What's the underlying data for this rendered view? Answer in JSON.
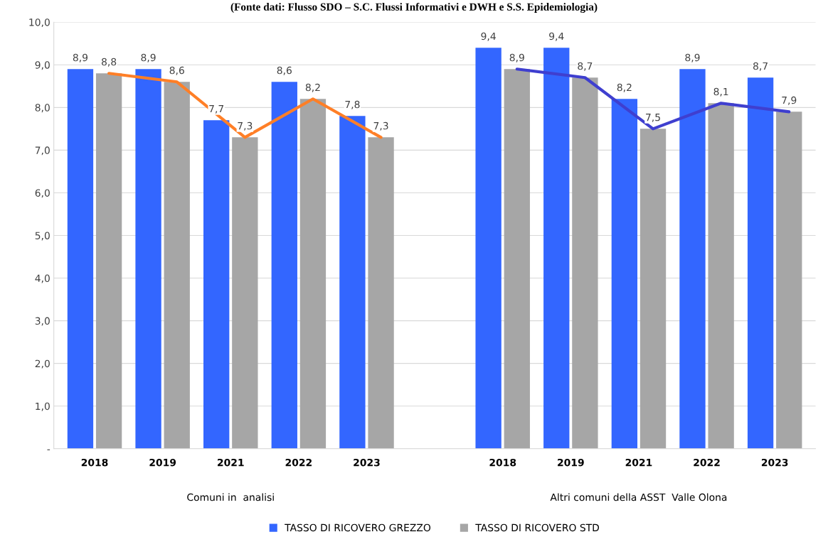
{
  "chart_data": {
    "type": "bar",
    "title": "(Fonte dati: Flusso SDO – S.C. Flussi Informativi e DWH e S.S. Epidemiologia)",
    "categories": [
      "2018",
      "2019",
      "2021",
      "2022",
      "2023",
      null,
      "2018",
      "2019",
      "2021",
      "2022",
      "2023"
    ],
    "series": [
      {
        "name": "TASSO DI RICOVERO GREZZO",
        "color": "#3366ff",
        "values": [
          8.9,
          8.9,
          7.7,
          8.6,
          7.8,
          null,
          9.4,
          9.4,
          8.2,
          8.9,
          8.7
        ],
        "value_labels": [
          "8,9",
          "8,9",
          "7,7",
          "8,6",
          "7,8",
          null,
          "9,4",
          "9,4",
          "8,2",
          "8,9",
          "8,7"
        ]
      },
      {
        "name": "TASSO DI RICOVERO STD",
        "color": "#a6a6a6",
        "values": [
          8.8,
          8.6,
          7.3,
          8.2,
          7.3,
          null,
          8.9,
          8.7,
          7.5,
          8.1,
          7.9
        ],
        "value_labels": [
          "8,8",
          "8,6",
          "7,3",
          "8,2",
          "7,3",
          null,
          "8,9",
          "8,7",
          "7,5",
          "8,1",
          "7,9"
        ]
      },
      {
        "type": "line",
        "color": "#ff7f27",
        "values": [
          8.8,
          8.6,
          7.3,
          8.2,
          7.3,
          null,
          null,
          null,
          null,
          null,
          null
        ]
      },
      {
        "type": "line",
        "color": "#3f3fcf",
        "values": [
          null,
          null,
          null,
          null,
          null,
          null,
          8.9,
          8.7,
          7.5,
          8.1,
          7.9
        ]
      }
    ],
    "annotations": [
      "Comuni in  analisi",
      "Altri comuni della ASST  Valle Olona"
    ],
    "ylim": [
      0,
      10
    ],
    "yticks": [
      {
        "value": 0,
        "label": "-"
      },
      {
        "value": 1,
        "label": "1,0"
      },
      {
        "value": 2,
        "label": "2,0"
      },
      {
        "value": 3,
        "label": "3,0"
      },
      {
        "value": 4,
        "label": "4,0"
      },
      {
        "value": 5,
        "label": "5,0"
      },
      {
        "value": 6,
        "label": "6,0"
      },
      {
        "value": 7,
        "label": "7,0"
      },
      {
        "value": 8,
        "label": "8,0"
      },
      {
        "value": 9,
        "label": "9,0"
      },
      {
        "value": 10,
        "label": "10,0"
      }
    ],
    "grid": "y",
    "legend": "bottom"
  }
}
